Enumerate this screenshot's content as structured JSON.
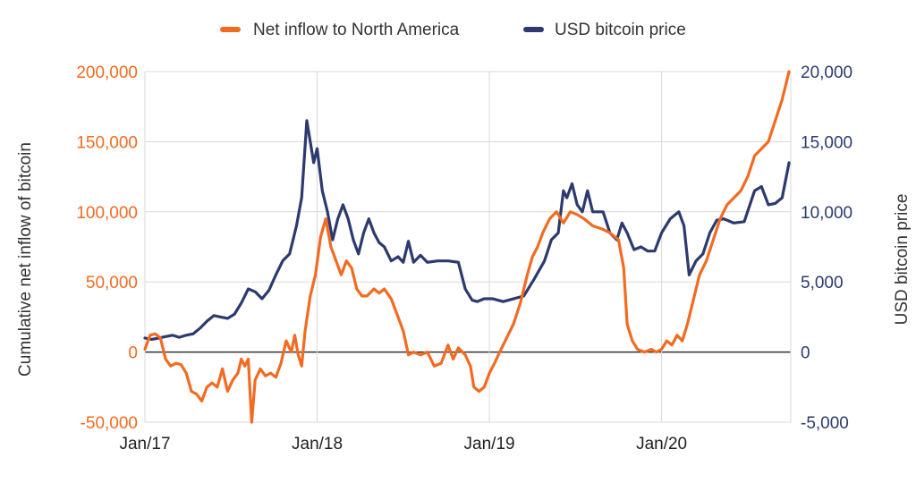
{
  "chart_data": {
    "type": "line",
    "title": "",
    "xlabel": "",
    "ylabel_left": "Cumulative net inflow of bitcoin",
    "ylabel_right": "USD bitcoin price",
    "x_ticks": [
      "Jan/17",
      "Jan/18",
      "Jan/19",
      "Jan/20"
    ],
    "x_range": [
      2017.0,
      2020.75
    ],
    "y_left": {
      "range": [
        -50000,
        200000
      ],
      "ticks": [
        -50000,
        0,
        50000,
        100000,
        150000,
        200000
      ],
      "tick_labels": [
        "-50,000",
        "0",
        "50,000",
        "100,000",
        "150,000",
        "200,000"
      ]
    },
    "y_right": {
      "range": [
        -5000,
        20000
      ],
      "ticks": [
        -5000,
        0,
        5000,
        10000,
        15000,
        20000
      ],
      "tick_labels": [
        "-5,000",
        "0",
        "5,000",
        "10,000",
        "15,000",
        "20,000"
      ]
    },
    "grid": true,
    "legend_position": "top-center",
    "series": [
      {
        "name": "Net inflow to North America",
        "axis": "left",
        "color": "#f26b21",
        "points": [
          [
            2017.0,
            2000
          ],
          [
            2017.03,
            12000
          ],
          [
            2017.06,
            13000
          ],
          [
            2017.09,
            10000
          ],
          [
            2017.12,
            -5000
          ],
          [
            2017.15,
            -10000
          ],
          [
            2017.18,
            -8000
          ],
          [
            2017.21,
            -9000
          ],
          [
            2017.24,
            -15000
          ],
          [
            2017.27,
            -28000
          ],
          [
            2017.3,
            -30000
          ],
          [
            2017.33,
            -35000
          ],
          [
            2017.36,
            -25000
          ],
          [
            2017.39,
            -22000
          ],
          [
            2017.42,
            -25000
          ],
          [
            2017.45,
            -12000
          ],
          [
            2017.48,
            -28000
          ],
          [
            2017.51,
            -20000
          ],
          [
            2017.54,
            -15000
          ],
          [
            2017.56,
            -5000
          ],
          [
            2017.58,
            -10000
          ],
          [
            2017.6,
            -5000
          ],
          [
            2017.62,
            -50000
          ],
          [
            2017.64,
            -20000
          ],
          [
            2017.67,
            -12000
          ],
          [
            2017.7,
            -17000
          ],
          [
            2017.73,
            -15000
          ],
          [
            2017.76,
            -18000
          ],
          [
            2017.79,
            -8000
          ],
          [
            2017.82,
            8000
          ],
          [
            2017.85,
            0
          ],
          [
            2017.87,
            12000
          ],
          [
            2017.89,
            -2000
          ],
          [
            2017.91,
            -10000
          ],
          [
            2017.93,
            15000
          ],
          [
            2017.96,
            40000
          ],
          [
            2017.99,
            55000
          ],
          [
            2018.02,
            82000
          ],
          [
            2018.05,
            95000
          ],
          [
            2018.08,
            75000
          ],
          [
            2018.11,
            65000
          ],
          [
            2018.14,
            55000
          ],
          [
            2018.17,
            65000
          ],
          [
            2018.2,
            60000
          ],
          [
            2018.23,
            45000
          ],
          [
            2018.26,
            40000
          ],
          [
            2018.29,
            40000
          ],
          [
            2018.33,
            45000
          ],
          [
            2018.36,
            42000
          ],
          [
            2018.39,
            45000
          ],
          [
            2018.43,
            38000
          ],
          [
            2018.47,
            25000
          ],
          [
            2018.5,
            15000
          ],
          [
            2018.53,
            -2000
          ],
          [
            2018.56,
            0
          ],
          [
            2018.6,
            -2000
          ],
          [
            2018.64,
            0
          ],
          [
            2018.68,
            -10000
          ],
          [
            2018.72,
            -8000
          ],
          [
            2018.76,
            5000
          ],
          [
            2018.79,
            -5000
          ],
          [
            2018.82,
            3000
          ],
          [
            2018.86,
            -2000
          ],
          [
            2018.89,
            -10000
          ],
          [
            2018.91,
            -25000
          ],
          [
            2018.94,
            -28000
          ],
          [
            2018.97,
            -25000
          ],
          [
            2019.0,
            -15000
          ],
          [
            2019.03,
            -8000
          ],
          [
            2019.06,
            0
          ],
          [
            2019.1,
            10000
          ],
          [
            2019.14,
            20000
          ],
          [
            2019.18,
            35000
          ],
          [
            2019.22,
            55000
          ],
          [
            2019.25,
            68000
          ],
          [
            2019.28,
            75000
          ],
          [
            2019.31,
            85000
          ],
          [
            2019.35,
            95000
          ],
          [
            2019.39,
            100000
          ],
          [
            2019.43,
            92000
          ],
          [
            2019.47,
            100000
          ],
          [
            2019.51,
            98000
          ],
          [
            2019.55,
            95000
          ],
          [
            2019.6,
            90000
          ],
          [
            2019.65,
            88000
          ],
          [
            2019.7,
            85000
          ],
          [
            2019.75,
            80000
          ],
          [
            2019.78,
            60000
          ],
          [
            2019.8,
            20000
          ],
          [
            2019.83,
            8000
          ],
          [
            2019.86,
            2000
          ],
          [
            2019.9,
            0
          ],
          [
            2019.94,
            2000
          ],
          [
            2019.97,
            0
          ],
          [
            2020.0,
            2000
          ],
          [
            2020.03,
            8000
          ],
          [
            2020.06,
            5000
          ],
          [
            2020.09,
            12000
          ],
          [
            2020.12,
            8000
          ],
          [
            2020.15,
            20000
          ],
          [
            2020.18,
            35000
          ],
          [
            2020.22,
            55000
          ],
          [
            2020.26,
            65000
          ],
          [
            2020.3,
            80000
          ],
          [
            2020.34,
            95000
          ],
          [
            2020.38,
            105000
          ],
          [
            2020.42,
            110000
          ],
          [
            2020.46,
            115000
          ],
          [
            2020.5,
            125000
          ],
          [
            2020.54,
            140000
          ],
          [
            2020.58,
            145000
          ],
          [
            2020.62,
            150000
          ],
          [
            2020.66,
            165000
          ],
          [
            2020.7,
            180000
          ],
          [
            2020.74,
            200000
          ]
        ]
      },
      {
        "name": "USD bitcoin price",
        "axis": "right",
        "color": "#2d3a6e",
        "points": [
          [
            2017.0,
            1000
          ],
          [
            2017.04,
            900
          ],
          [
            2017.08,
            1000
          ],
          [
            2017.12,
            1100
          ],
          [
            2017.16,
            1200
          ],
          [
            2017.2,
            1050
          ],
          [
            2017.24,
            1200
          ],
          [
            2017.28,
            1300
          ],
          [
            2017.32,
            1700
          ],
          [
            2017.36,
            2200
          ],
          [
            2017.4,
            2600
          ],
          [
            2017.44,
            2500
          ],
          [
            2017.48,
            2400
          ],
          [
            2017.52,
            2700
          ],
          [
            2017.56,
            3500
          ],
          [
            2017.6,
            4500
          ],
          [
            2017.64,
            4300
          ],
          [
            2017.68,
            3800
          ],
          [
            2017.72,
            4400
          ],
          [
            2017.76,
            5500
          ],
          [
            2017.8,
            6500
          ],
          [
            2017.84,
            7000
          ],
          [
            2017.88,
            9000
          ],
          [
            2017.91,
            11000
          ],
          [
            2017.94,
            16500
          ],
          [
            2017.96,
            15000
          ],
          [
            2017.98,
            13500
          ],
          [
            2018.0,
            14500
          ],
          [
            2018.03,
            11500
          ],
          [
            2018.06,
            10000
          ],
          [
            2018.09,
            8000
          ],
          [
            2018.12,
            9500
          ],
          [
            2018.15,
            10500
          ],
          [
            2018.18,
            9500
          ],
          [
            2018.21,
            8000
          ],
          [
            2018.24,
            7000
          ],
          [
            2018.27,
            8500
          ],
          [
            2018.3,
            9500
          ],
          [
            2018.33,
            8500
          ],
          [
            2018.36,
            7800
          ],
          [
            2018.39,
            7500
          ],
          [
            2018.43,
            6500
          ],
          [
            2018.47,
            6800
          ],
          [
            2018.5,
            6400
          ],
          [
            2018.53,
            7900
          ],
          [
            2018.56,
            6400
          ],
          [
            2018.6,
            6900
          ],
          [
            2018.64,
            6400
          ],
          [
            2018.7,
            6500
          ],
          [
            2018.76,
            6500
          ],
          [
            2018.82,
            6400
          ],
          [
            2018.86,
            4500
          ],
          [
            2018.9,
            3700
          ],
          [
            2018.93,
            3600
          ],
          [
            2018.97,
            3800
          ],
          [
            2019.02,
            3800
          ],
          [
            2019.08,
            3600
          ],
          [
            2019.14,
            3800
          ],
          [
            2019.2,
            4000
          ],
          [
            2019.26,
            5200
          ],
          [
            2019.32,
            6500
          ],
          [
            2019.36,
            8000
          ],
          [
            2019.4,
            8500
          ],
          [
            2019.43,
            11500
          ],
          [
            2019.45,
            11000
          ],
          [
            2019.48,
            12000
          ],
          [
            2019.51,
            10500
          ],
          [
            2019.54,
            10000
          ],
          [
            2019.57,
            11500
          ],
          [
            2019.6,
            10000
          ],
          [
            2019.63,
            10000
          ],
          [
            2019.66,
            10000
          ],
          [
            2019.7,
            8500
          ],
          [
            2019.74,
            8000
          ],
          [
            2019.77,
            9200
          ],
          [
            2019.8,
            8500
          ],
          [
            2019.84,
            7300
          ],
          [
            2019.88,
            7500
          ],
          [
            2019.92,
            7200
          ],
          [
            2019.96,
            7200
          ],
          [
            2020.0,
            8500
          ],
          [
            2020.05,
            9500
          ],
          [
            2020.1,
            10000
          ],
          [
            2020.13,
            9000
          ],
          [
            2020.16,
            5500
          ],
          [
            2020.2,
            6500
          ],
          [
            2020.24,
            7000
          ],
          [
            2020.28,
            8500
          ],
          [
            2020.32,
            9400
          ],
          [
            2020.36,
            9500
          ],
          [
            2020.42,
            9200
          ],
          [
            2020.48,
            9300
          ],
          [
            2020.54,
            11500
          ],
          [
            2020.58,
            11800
          ],
          [
            2020.62,
            10500
          ],
          [
            2020.66,
            10600
          ],
          [
            2020.7,
            11000
          ],
          [
            2020.74,
            13500
          ]
        ]
      }
    ]
  }
}
